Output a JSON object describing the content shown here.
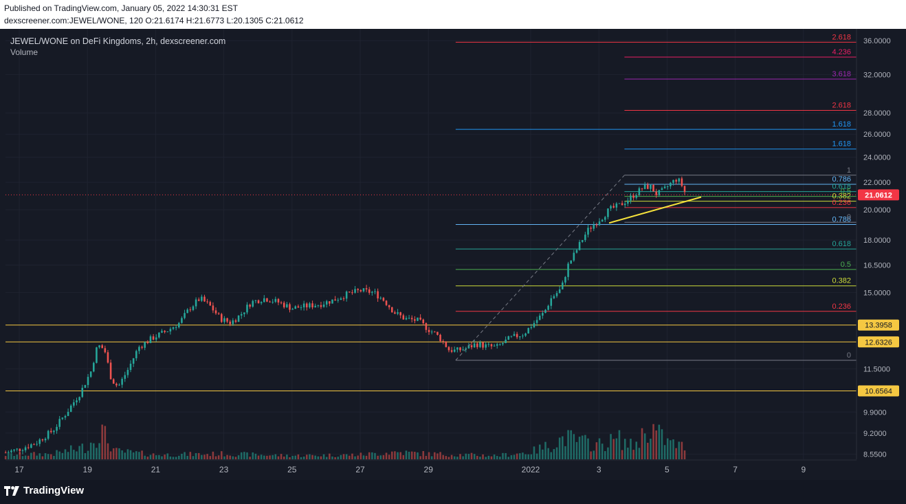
{
  "header": {
    "published": "Published on TradingView.com, January 05, 2022 14:30:31 EST",
    "ohlc": "dexscreener.com:JEWEL/WONE, 120  O:21.6174 H:21.6773 L:20.1305 C:21.0612"
  },
  "legend": {
    "title": "JEWEL/WONE on DeFi Kingdoms, 2h, dexscreener.com",
    "volume": "Volume"
  },
  "branding": {
    "logo_text": "TradingView",
    "logo_icon": "tradingview-logo-icon"
  },
  "colors": {
    "up": "#26a69a",
    "down": "#ef5350",
    "up_volume": "#1f6b66",
    "down_volume": "#8c3a3c",
    "hline": "#f5c842",
    "trendline": "#f5e23c",
    "last_price": "#f23645"
  },
  "chart_data": {
    "type": "candlestick",
    "symbol": "JEWEL/WONE",
    "interval": "2h",
    "last_price": "21.0612",
    "y_scale": "log",
    "ylim": [
      8.4,
      37.5
    ],
    "x_ticks": [
      {
        "label": "17",
        "pos": 0.0
      },
      {
        "label": "19",
        "pos": 2.0
      },
      {
        "label": "21",
        "pos": 4.0
      },
      {
        "label": "23",
        "pos": 6.0
      },
      {
        "label": "25",
        "pos": 8.0
      },
      {
        "label": "27",
        "pos": 10.0
      },
      {
        "label": "29",
        "pos": 12.0
      },
      {
        "label": "2022",
        "pos": 15.0
      },
      {
        "label": "3",
        "pos": 17.0
      },
      {
        "label": "5",
        "pos": 19.0
      },
      {
        "label": "7",
        "pos": 21.0
      },
      {
        "label": "9",
        "pos": 23.0
      }
    ],
    "y_ticks": [
      "36.0000",
      "32.0000",
      "28.0000",
      "26.0000",
      "24.0000",
      "22.0000",
      "20.0000",
      "18.0000",
      "16.5000",
      "15.0000",
      "11.5000",
      "9.9000",
      "9.2000",
      "8.5500"
    ],
    "price_path": [
      [
        -0.4,
        8.6
      ],
      [
        0.0,
        8.7
      ],
      [
        0.5,
        8.9
      ],
      [
        1.0,
        9.3
      ],
      [
        1.4,
        9.9
      ],
      [
        1.8,
        10.6
      ],
      [
        2.1,
        11.4
      ],
      [
        2.3,
        12.5
      ],
      [
        2.5,
        12.3
      ],
      [
        2.7,
        11.1
      ],
      [
        2.9,
        10.8
      ],
      [
        3.2,
        11.5
      ],
      [
        3.5,
        12.4
      ],
      [
        3.9,
        12.8
      ],
      [
        4.3,
        13.1
      ],
      [
        4.7,
        13.5
      ],
      [
        5.0,
        14.2
      ],
      [
        5.3,
        14.7
      ],
      [
        5.6,
        14.3
      ],
      [
        5.9,
        13.7
      ],
      [
        6.2,
        13.5
      ],
      [
        6.5,
        13.9
      ],
      [
        6.8,
        14.5
      ],
      [
        7.2,
        14.7
      ],
      [
        7.6,
        14.5
      ],
      [
        8.0,
        14.2
      ],
      [
        8.4,
        14.3
      ],
      [
        8.8,
        14.4
      ],
      [
        9.2,
        14.6
      ],
      [
        9.6,
        14.9
      ],
      [
        10.0,
        15.1
      ],
      [
        10.4,
        15.0
      ],
      [
        10.7,
        14.6
      ],
      [
        11.0,
        14.0
      ],
      [
        11.3,
        13.7
      ],
      [
        11.7,
        13.6
      ],
      [
        12.0,
        13.2
      ],
      [
        12.2,
        13.0
      ],
      [
        12.4,
        12.7
      ],
      [
        12.6,
        12.3
      ],
      [
        12.8,
        12.25
      ],
      [
        13.1,
        12.35
      ],
      [
        13.4,
        12.55
      ],
      [
        13.7,
        12.45
      ],
      [
        14.0,
        12.4
      ],
      [
        14.4,
        12.8
      ],
      [
        14.8,
        13.0
      ],
      [
        15.1,
        13.5
      ],
      [
        15.4,
        14.0
      ],
      [
        15.6,
        14.7
      ],
      [
        15.9,
        15.2
      ],
      [
        16.1,
        16.5
      ],
      [
        16.3,
        17.2
      ],
      [
        16.5,
        18.0
      ],
      [
        16.7,
        18.7
      ],
      [
        16.9,
        19.1
      ],
      [
        17.1,
        19.5
      ],
      [
        17.3,
        20.0
      ],
      [
        17.6,
        20.3
      ],
      [
        17.9,
        20.8
      ],
      [
        18.1,
        21.2
      ],
      [
        18.3,
        21.6
      ],
      [
        18.5,
        21.7
      ],
      [
        18.7,
        21.1
      ],
      [
        18.9,
        21.4
      ],
      [
        19.1,
        21.9
      ],
      [
        19.3,
        22.3
      ],
      [
        19.45,
        21.7
      ],
      [
        19.55,
        21.06
      ]
    ],
    "volume_envelope": [
      [
        -0.4,
        0.05
      ],
      [
        1.0,
        0.06
      ],
      [
        2.0,
        0.14
      ],
      [
        2.4,
        0.32
      ],
      [
        2.8,
        0.09
      ],
      [
        4.0,
        0.05
      ],
      [
        6.0,
        0.06
      ],
      [
        8.0,
        0.04
      ],
      [
        10.0,
        0.05
      ],
      [
        11.0,
        0.08
      ],
      [
        12.0,
        0.06
      ],
      [
        13.0,
        0.05
      ],
      [
        14.0,
        0.04
      ],
      [
        15.0,
        0.08
      ],
      [
        15.6,
        0.16
      ],
      [
        16.0,
        0.24
      ],
      [
        16.5,
        0.19
      ],
      [
        17.0,
        0.16
      ],
      [
        17.6,
        0.22
      ],
      [
        18.0,
        0.14
      ],
      [
        18.5,
        0.36
      ],
      [
        19.0,
        0.19
      ],
      [
        19.55,
        0.13
      ]
    ],
    "horizontal_levels": [
      "13.3958",
      "12.6326",
      "10.6564"
    ],
    "trendline": {
      "from": [
        17.3,
        19.1
      ],
      "to": [
        20.0,
        20.9
      ]
    },
    "fib_upper": [
      {
        "label": "1",
        "value": 22.55,
        "color": "#787b86"
      },
      {
        "label": "0.786",
        "value": 21.85,
        "color": "#64b5f6"
      },
      {
        "label": "0.618",
        "value": 21.3,
        "color": "#26a69a"
      },
      {
        "label": "0.5",
        "value": 20.95,
        "color": "#4caf50"
      },
      {
        "label": "0.382",
        "value": 20.6,
        "color": "#cddc39"
      },
      {
        "label": "0.236",
        "value": 20.15,
        "color": "#f23645"
      },
      {
        "label": "0",
        "value": 19.15,
        "color": "#787b86"
      }
    ],
    "fib_lower": [
      {
        "label": "0.786",
        "value": 19.0,
        "color": "#64b5f6"
      },
      {
        "label": "0.618",
        "value": 17.45,
        "color": "#26a69a"
      },
      {
        "label": "0.5",
        "value": 16.25,
        "color": "#4caf50"
      },
      {
        "label": "0.382",
        "value": 15.35,
        "color": "#cddc39"
      },
      {
        "label": "0.236",
        "value": 14.05,
        "color": "#f23645"
      },
      {
        "label": "0",
        "value": 11.85,
        "color": "#787b86"
      }
    ],
    "fib_extensions": [
      {
        "label": "2.618",
        "value": 35.8,
        "color": "#f23645",
        "short": false
      },
      {
        "label": "4.236",
        "value": 34.0,
        "color": "#e91e63",
        "short": true
      },
      {
        "label": "3.618",
        "value": 31.5,
        "color": "#9c27b0",
        "short": true
      },
      {
        "label": "2.618",
        "value": 28.25,
        "color": "#f23645",
        "short": true
      },
      {
        "label": "1.618",
        "value": 26.45,
        "color": "#2196f3",
        "short": false
      },
      {
        "label": "1.618",
        "value": 24.7,
        "color": "#2196f3",
        "short": true
      }
    ]
  }
}
